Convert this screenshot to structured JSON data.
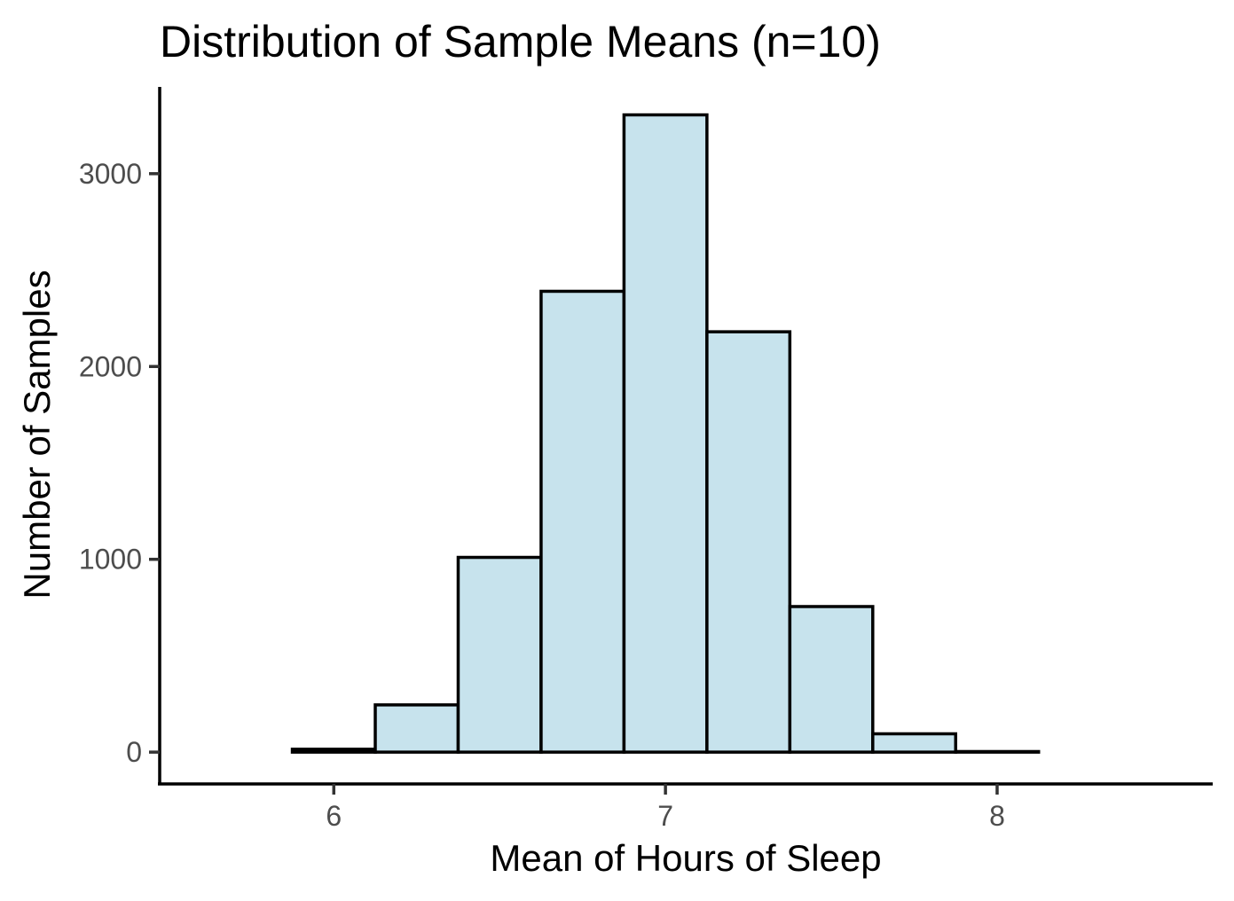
{
  "chart_data": {
    "type": "bar",
    "title": "Distribution of Sample Means (n=10)",
    "xlabel": "Mean of Hours of Sleep",
    "ylabel": "Number of Samples",
    "bin_width": 0.25,
    "bins": [
      {
        "x0": 5.875,
        "x1": 6.125,
        "count": 15
      },
      {
        "x0": 6.125,
        "x1": 6.375,
        "count": 245
      },
      {
        "x0": 6.375,
        "x1": 6.625,
        "count": 1010
      },
      {
        "x0": 6.625,
        "x1": 6.875,
        "count": 2390
      },
      {
        "x0": 6.875,
        "x1": 7.125,
        "count": 3305
      },
      {
        "x0": 7.125,
        "x1": 7.375,
        "count": 2180
      },
      {
        "x0": 7.375,
        "x1": 7.625,
        "count": 755
      },
      {
        "x0": 7.625,
        "x1": 7.875,
        "count": 95
      },
      {
        "x0": 7.875,
        "x1": 8.125,
        "count": 3
      }
    ],
    "xlim": [
      5.475,
      8.65
    ],
    "ylim": [
      -165,
      3450
    ],
    "x_ticks": [
      6,
      7,
      8
    ],
    "x_tick_labels": [
      "6",
      "7",
      "8"
    ],
    "y_ticks": [
      0,
      1000,
      2000,
      3000
    ],
    "y_tick_labels": [
      "0",
      "1000",
      "2000",
      "3000"
    ],
    "grid": false,
    "legend": "none",
    "colors": {
      "bar_fill": "#c7e3ed",
      "bar_outline": "#000000",
      "axis": "#000000",
      "tick_label": "#4d4d4d"
    }
  }
}
